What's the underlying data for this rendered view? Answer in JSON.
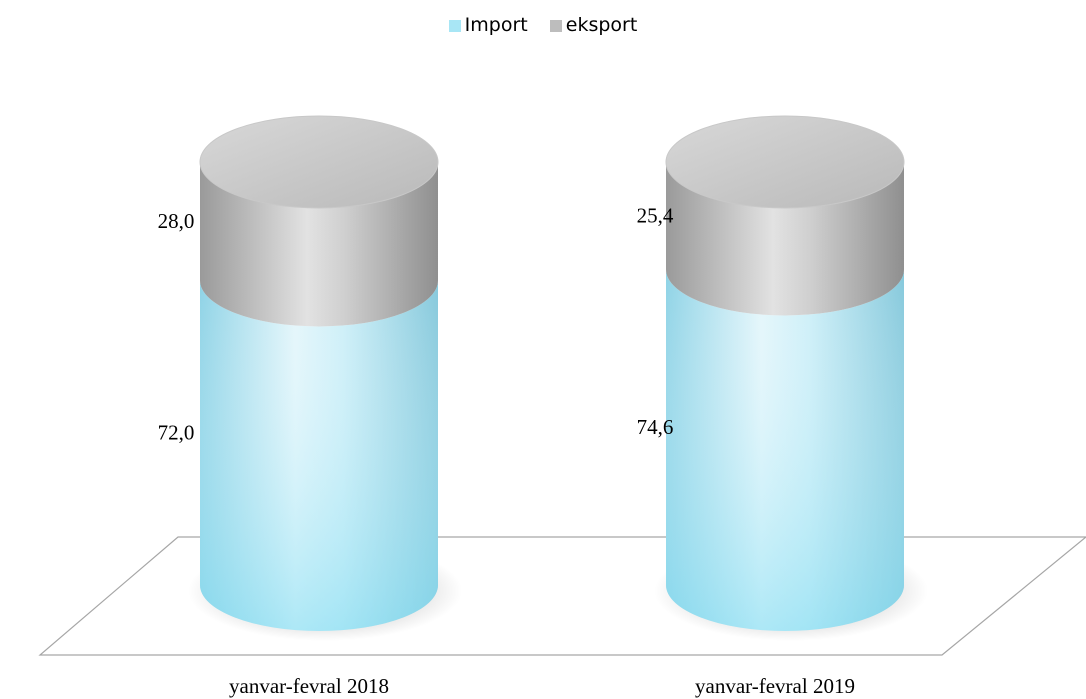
{
  "chart_data": {
    "type": "bar",
    "stacked": true,
    "style": "3d-cylinder",
    "categories": [
      "yanvar-fevral 2018",
      "yanvar-fevral 2019"
    ],
    "series": [
      {
        "name": "Import",
        "values": [
          72.0,
          74.6
        ],
        "labels": [
          "72,0",
          "74,6"
        ],
        "color": "#a8e6f5"
      },
      {
        "name": "eksport",
        "values": [
          28.0,
          25.4
        ],
        "labels": [
          "28,0",
          "25,4"
        ],
        "color": "#b0b0b0"
      }
    ],
    "ylim": [
      0,
      100
    ],
    "legend": "top-center",
    "grid": false
  }
}
